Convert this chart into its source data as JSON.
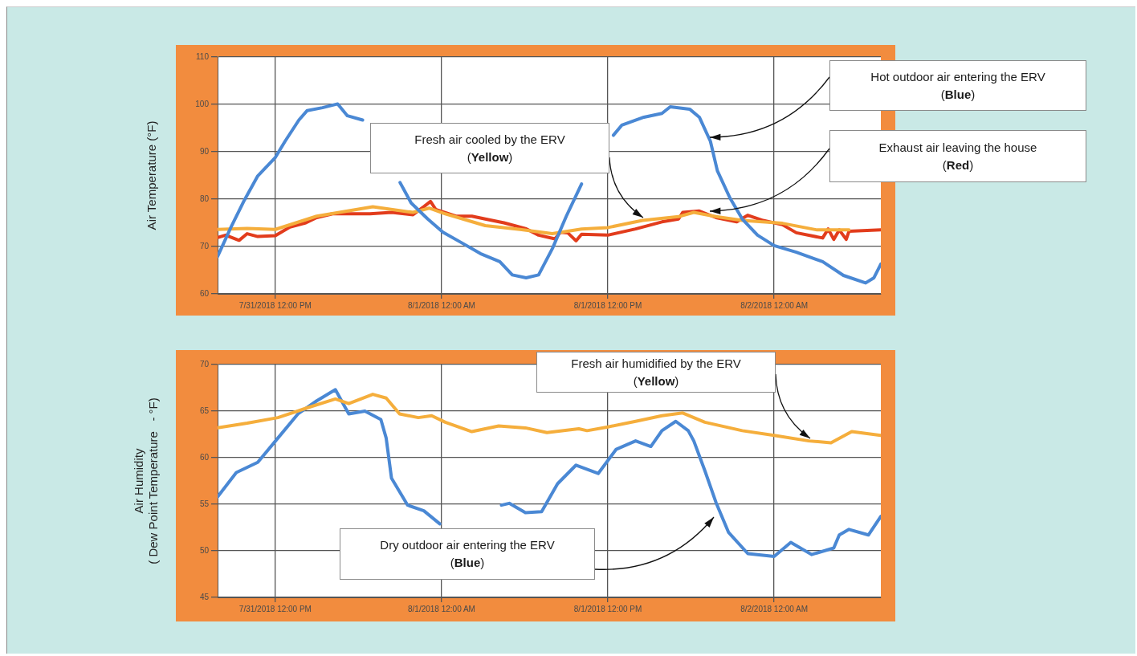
{
  "chart_data": [
    {
      "type": "line",
      "ylabel": "Air Temperature (°F)",
      "xlim": [
        "2018-07-31T07:50",
        "2018-08-02T07:42"
      ],
      "xticks": [
        {
          "value": "2018-07-31T12:00",
          "label": "7/31/2018 12:00 PM"
        },
        {
          "value": "2018-08-01T00:00",
          "label": "8/1/2018 12:00 AM"
        },
        {
          "value": "2018-08-01T12:00",
          "label": "8/1/2018 12:00 PM"
        },
        {
          "value": "2018-08-02T00:00",
          "label": "8/2/2018 12:00 AM"
        }
      ],
      "ylim": [
        60,
        110
      ],
      "yticks": [
        60,
        70,
        80,
        90,
        100,
        110
      ],
      "grid": true,
      "legend": false,
      "marker": "none",
      "line_style": "solid",
      "series": [
        {
          "color": "#4a88d4",
          "x": [
            "2018-07-31T07:50",
            "2018-07-31T08:48",
            "2018-07-31T09:46",
            "2018-07-31T10:44",
            "2018-07-31T12:00",
            "2018-07-31T12:42",
            "2018-07-31T13:42",
            "2018-07-31T14:18",
            "2018-07-31T15:24",
            "2018-07-31T16:30",
            "2018-07-31T17:12",
            "2018-07-31T18:18",
            "2018-07-31T19:30",
            "2018-07-31T21:00",
            "2018-07-31T21:48",
            "2018-07-31T23:00",
            "2018-08-01T00:06",
            "2018-08-01T01:30",
            "2018-08-01T02:48",
            "2018-08-01T04:12",
            "2018-08-01T05:06",
            "2018-08-01T06:06",
            "2018-08-01T07:00",
            "2018-08-01T08:00",
            "2018-08-01T09:00",
            "2018-08-01T10:06",
            "2018-08-01T11:18",
            "2018-08-01T12:24",
            "2018-08-01T13:00",
            "2018-08-01T14:36",
            "2018-08-01T15:54",
            "2018-08-01T16:30",
            "2018-08-01T17:54",
            "2018-08-01T18:36",
            "2018-08-01T19:24",
            "2018-08-01T19:54",
            "2018-08-01T20:48",
            "2018-08-01T21:42",
            "2018-08-01T22:48",
            "2018-08-02T00:00",
            "2018-08-02T01:36",
            "2018-08-02T03:30",
            "2018-08-02T05:00",
            "2018-08-02T06:36",
            "2018-08-02T07:12",
            "2018-08-02T07:42"
          ],
          "values": [
            67.9,
            74.1,
            79.8,
            84.9,
            88.8,
            92.2,
            96.7,
            98.7,
            99.3,
            100.1,
            97.6,
            96.7,
            null,
            83.5,
            79.2,
            75.8,
            73.0,
            70.7,
            68.5,
            66.8,
            64.0,
            63.4,
            64.0,
            69.6,
            76.4,
            83.2,
            null,
            93.5,
            95.6,
            97.3,
            98.1,
            99.5,
            99.0,
            97.3,
            92.2,
            86.0,
            80.3,
            75.8,
            72.4,
            70.2,
            68.8,
            66.8,
            63.9,
            62.3,
            63.4,
            66.3
          ]
        },
        {
          "color": "#f5ae3c",
          "x": [
            "2018-07-31T07:50",
            "2018-07-31T09:58",
            "2018-07-31T12:00",
            "2018-07-31T14:59",
            "2018-07-31T19:02",
            "2018-07-31T21:56",
            "2018-07-31T23:06",
            "2018-08-01T00:16",
            "2018-08-01T03:09",
            "2018-08-01T05:40",
            "2018-08-01T07:59",
            "2018-08-01T10:06",
            "2018-08-01T12:00",
            "2018-08-01T14:30",
            "2018-08-01T17:06",
            "2018-08-01T18:12",
            "2018-08-01T19:48",
            "2018-08-01T21:42",
            "2018-08-02T00:36",
            "2018-08-02T03:06",
            "2018-08-02T05:24"
          ],
          "values": [
            73.6,
            73.8,
            73.6,
            76.4,
            78.4,
            77.2,
            78.1,
            76.9,
            74.4,
            73.6,
            72.7,
            73.7,
            74.0,
            75.5,
            76.3,
            77.2,
            76.3,
            75.5,
            74.9,
            73.5,
            73.5
          ]
        },
        {
          "color": "#e23c1c",
          "x": [
            "2018-07-31T07:50",
            "2018-07-31T08:25",
            "2018-07-31T09:23",
            "2018-07-31T09:58",
            "2018-07-31T10:44",
            "2018-07-31T12:00",
            "2018-07-31T13:03",
            "2018-07-31T14:12",
            "2018-07-31T14:59",
            "2018-07-31T16:08",
            "2018-07-31T17:30",
            "2018-07-31T18:50",
            "2018-07-31T20:24",
            "2018-07-31T21:56",
            "2018-07-31T22:43",
            "2018-07-31T23:12",
            "2018-07-31T23:35",
            "2018-08-01T01:02",
            "2018-08-01T02:11",
            "2018-08-01T03:09",
            "2018-08-01T04:30",
            "2018-08-01T06:03",
            "2018-08-01T07:00",
            "2018-08-01T08:11",
            "2018-08-01T08:34",
            "2018-08-01T09:06",
            "2018-08-01T09:42",
            "2018-08-01T10:06",
            "2018-08-01T12:00",
            "2018-08-01T14:00",
            "2018-08-01T15:54",
            "2018-08-01T17:06",
            "2018-08-01T17:24",
            "2018-08-01T18:36",
            "2018-08-01T19:48",
            "2018-08-01T21:18",
            "2018-08-01T22:06",
            "2018-08-01T23:12",
            "2018-08-02T00:36",
            "2018-08-02T01:36",
            "2018-08-02T03:30",
            "2018-08-02T03:54",
            "2018-08-02T04:18",
            "2018-08-02T04:42",
            "2018-08-02T05:12",
            "2018-08-02T05:24",
            "2018-08-02T07:42"
          ],
          "values": [
            71.9,
            72.4,
            71.3,
            72.7,
            72.1,
            72.3,
            74.1,
            75.0,
            76.1,
            76.9,
            76.9,
            76.9,
            77.2,
            76.7,
            78.4,
            79.5,
            77.8,
            76.4,
            76.4,
            75.8,
            75.0,
            73.8,
            72.4,
            71.6,
            73.0,
            72.9,
            71.2,
            72.6,
            72.4,
            73.7,
            75.2,
            75.8,
            77.2,
            77.5,
            76.1,
            75.2,
            76.6,
            75.5,
            74.6,
            72.9,
            71.8,
            73.7,
            71.5,
            73.5,
            71.5,
            73.2,
            73.5
          ]
        }
      ],
      "annotations": [
        "Hot outdoor air entering the ERV (Blue)",
        "Fresh air cooled by the ERV (Yellow)",
        "Exhaust air leaving the house (Red)"
      ]
    },
    {
      "type": "line",
      "ylabel": "Air Humidity\n( Dew Point Temperature   - °F)",
      "xlim": [
        "2018-07-31T07:50",
        "2018-08-02T07:42"
      ],
      "xticks": [
        {
          "value": "2018-07-31T12:00",
          "label": "7/31/2018 12:00 PM"
        },
        {
          "value": "2018-08-01T00:00",
          "label": "8/1/2018 12:00 AM"
        },
        {
          "value": "2018-08-01T12:00",
          "label": "8/1/2018 12:00 PM"
        },
        {
          "value": "2018-08-02T00:00",
          "label": "8/2/2018 12:00 AM"
        }
      ],
      "ylim": [
        45,
        70
      ],
      "yticks": [
        45,
        50,
        55,
        60,
        65,
        70
      ],
      "grid": true,
      "legend": false,
      "marker": "none",
      "line_style": "solid",
      "series": [
        {
          "color": "#f5ae3c",
          "x": [
            "2018-07-31T07:50",
            "2018-07-31T09:58",
            "2018-07-31T12:11",
            "2018-07-31T14:12",
            "2018-07-31T16:20",
            "2018-07-31T17:18",
            "2018-07-31T19:02",
            "2018-07-31T20:00",
            "2018-07-31T20:58",
            "2018-07-31T22:19",
            "2018-07-31T23:17",
            "2018-08-01T00:16",
            "2018-08-01T02:11",
            "2018-08-01T04:07",
            "2018-08-01T06:03",
            "2018-08-01T07:36",
            "2018-08-01T09:54",
            "2018-08-01T10:30",
            "2018-08-01T12:00",
            "2018-08-01T14:00",
            "2018-08-01T15:54",
            "2018-08-01T17:24",
            "2018-08-01T19:00",
            "2018-08-01T21:42",
            "2018-08-02T00:00",
            "2018-08-02T02:30",
            "2018-08-02T04:06",
            "2018-08-02T05:36",
            "2018-08-02T07:42"
          ],
          "values": [
            63.2,
            63.7,
            64.3,
            65.3,
            66.3,
            65.8,
            66.8,
            66.4,
            64.7,
            64.3,
            64.5,
            63.8,
            62.8,
            63.4,
            63.2,
            62.7,
            63.1,
            62.9,
            63.3,
            63.9,
            64.5,
            64.8,
            63.8,
            62.9,
            62.4,
            61.8,
            61.6,
            62.8,
            62.4
          ]
        },
        {
          "color": "#4a88d4",
          "x": [
            "2018-07-31T07:50",
            "2018-07-31T09:11",
            "2018-07-31T10:44",
            "2018-07-31T12:11",
            "2018-07-31T13:38",
            "2018-07-31T14:59",
            "2018-07-31T16:20",
            "2018-07-31T17:18",
            "2018-07-31T18:28",
            "2018-07-31T19:37",
            "2018-07-31T20:00",
            "2018-07-31T20:23",
            "2018-07-31T21:33",
            "2018-07-31T22:43",
            "2018-07-31T23:52",
            "2018-08-01T02:00",
            "2018-08-01T04:19",
            "2018-08-01T04:53",
            "2018-08-01T06:03",
            "2018-08-01T07:13",
            "2018-08-01T08:22",
            "2018-08-01T09:42",
            "2018-08-01T11:18",
            "2018-08-01T12:36",
            "2018-08-01T14:00",
            "2018-08-01T15:06",
            "2018-08-01T15:54",
            "2018-08-01T16:54",
            "2018-08-01T17:48",
            "2018-08-01T18:12",
            "2018-08-01T19:00",
            "2018-08-01T19:48",
            "2018-08-01T20:42",
            "2018-08-01T22:06",
            "2018-08-02T00:00",
            "2018-08-02T01:12",
            "2018-08-02T02:42",
            "2018-08-02T04:18",
            "2018-08-02T04:42",
            "2018-08-02T05:24",
            "2018-08-02T06:48",
            "2018-08-02T07:42"
          ],
          "values": [
            55.8,
            58.4,
            59.5,
            62.1,
            64.7,
            66.1,
            67.3,
            64.7,
            65.0,
            64.1,
            62.1,
            57.8,
            54.9,
            54.3,
            52.9,
            null,
            54.9,
            55.1,
            54.1,
            54.2,
            57.2,
            59.2,
            58.3,
            60.9,
            61.8,
            61.2,
            62.9,
            63.9,
            62.9,
            61.8,
            58.6,
            55.2,
            52.0,
            49.7,
            49.4,
            50.9,
            49.6,
            50.3,
            51.7,
            52.3,
            51.7,
            53.7
          ]
        }
      ],
      "annotations": [
        "Fresh air humidified by the ERV (Yellow)",
        "Dry outdoor air entering the ERV (Blue)"
      ]
    }
  ]
}
